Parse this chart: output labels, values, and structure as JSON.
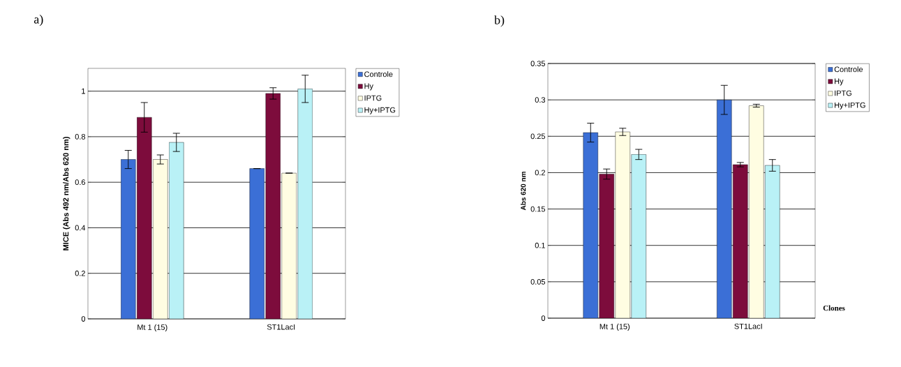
{
  "chart_data": [
    {
      "type": "bar",
      "title": "a)",
      "ylabel": "MICE (Abs 492 nm/Abs 620 nm)",
      "categories": [
        "Mt 1 (15)",
        "ST1LacI"
      ],
      "ylim": [
        0,
        1.1
      ],
      "yticks": [
        0,
        0.2,
        0.4,
        0.6,
        0.8,
        1
      ],
      "grid": "y",
      "legend": "right",
      "series": [
        {
          "name": "Controle",
          "color": "#3b6fd6",
          "values": [
            0.7,
            0.66
          ],
          "errors": [
            0.04,
            null
          ]
        },
        {
          "name": "Hy",
          "color": "#7d0c3c",
          "values": [
            0.885,
            0.99
          ],
          "errors": [
            0.065,
            0.025
          ]
        },
        {
          "name": "IPTG",
          "color": "#fffde2",
          "values": [
            0.7,
            0.64
          ],
          "errors": [
            0.02,
            null
          ]
        },
        {
          "name": "Hy+IPTG",
          "color": "#b9f1f6",
          "values": [
            0.775,
            1.01
          ],
          "errors": [
            0.04,
            0.06
          ]
        }
      ]
    },
    {
      "type": "bar",
      "title": "b)",
      "ylabel": "Abs 620 nm",
      "xlabel": "Clones",
      "categories": [
        "Mt 1 (15)",
        "ST1LacI"
      ],
      "ylim": [
        0,
        0.35
      ],
      "yticks": [
        0,
        0.05,
        0.1,
        0.15,
        0.2,
        0.25,
        0.3,
        0.35
      ],
      "grid": "y",
      "legend": "right",
      "series": [
        {
          "name": "Controle",
          "color": "#3b6fd6",
          "values": [
            0.255,
            0.3
          ],
          "errors": [
            0.013,
            0.02
          ]
        },
        {
          "name": "Hy",
          "color": "#7d0c3c",
          "values": [
            0.198,
            0.211
          ],
          "errors": [
            0.007,
            0.003
          ]
        },
        {
          "name": "IPTG",
          "color": "#fffde2",
          "values": [
            0.256,
            0.292
          ],
          "errors": [
            0.005,
            0.002
          ]
        },
        {
          "name": "Hy+IPTG",
          "color": "#b9f1f6",
          "values": [
            0.225,
            0.21
          ],
          "errors": [
            0.007,
            0.008
          ]
        }
      ]
    }
  ]
}
